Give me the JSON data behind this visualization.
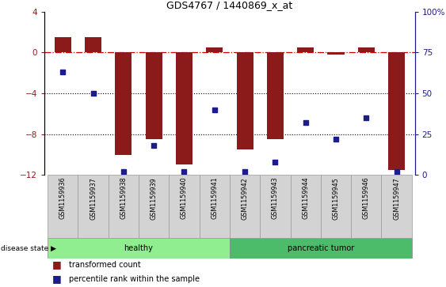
{
  "title": "GDS4767 / 1440869_x_at",
  "samples": [
    "GSM1159936",
    "GSM1159937",
    "GSM1159938",
    "GSM1159939",
    "GSM1159940",
    "GSM1159941",
    "GSM1159942",
    "GSM1159943",
    "GSM1159944",
    "GSM1159945",
    "GSM1159946",
    "GSM1159947"
  ],
  "red_bars": [
    1.5,
    1.5,
    -10.0,
    -8.5,
    -11.0,
    0.5,
    -9.5,
    -8.5,
    0.5,
    -0.2,
    0.5,
    -11.5
  ],
  "blue_percentiles": [
    63,
    50,
    2,
    18,
    2,
    40,
    2,
    8,
    32,
    22,
    35,
    2
  ],
  "healthy_count": 6,
  "tumor_count": 6,
  "ylim_left": [
    -12,
    4
  ],
  "ylim_right": [
    0,
    100
  ],
  "yticks_left": [
    -12,
    -8,
    -4,
    0,
    4
  ],
  "yticks_right": [
    0,
    25,
    50,
    75,
    100
  ],
  "bar_color": "#8B1A1A",
  "square_color": "#1C1C8B",
  "healthy_color": "#90EE90",
  "tumor_color": "#4CBB6A",
  "grid_color": "#000000",
  "zero_line_color": "#CC0000",
  "legend_red_label": "transformed count",
  "legend_blue_label": "percentile rank within the sample",
  "disease_label": "disease state",
  "healthy_label": "healthy",
  "tumor_label": "pancreatic tumor"
}
